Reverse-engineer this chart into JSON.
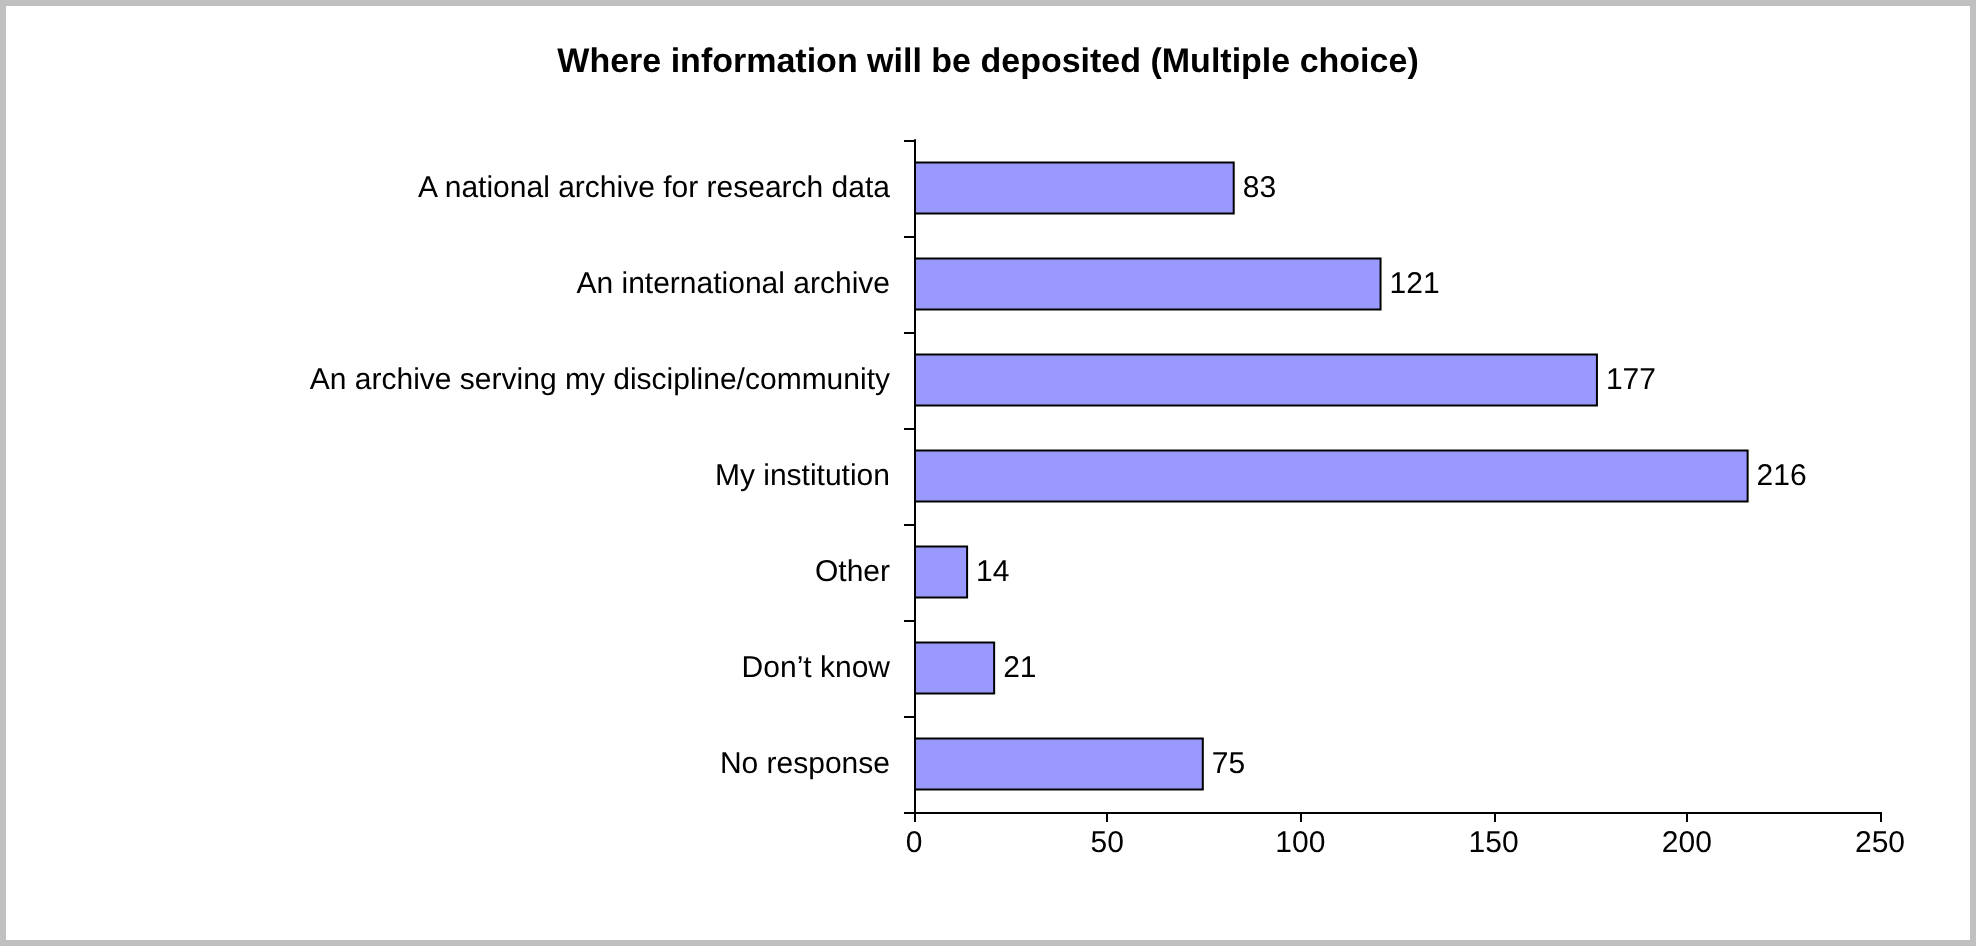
{
  "chart_data": {
    "type": "bar",
    "orientation": "horizontal",
    "title": "Where information will be deposited (Multiple choice)",
    "categories": [
      "A national archive for research data",
      "An international archive",
      "An archive serving my discipline/community",
      "My institution",
      "Other",
      "Don’t know",
      "No response"
    ],
    "values": [
      83,
      121,
      177,
      216,
      14,
      21,
      75
    ],
    "color": "#9999ff",
    "xlim": [
      0,
      250
    ],
    "xticks": [
      0,
      50,
      100,
      150,
      200,
      250
    ],
    "grid": false,
    "data_labels": true
  }
}
